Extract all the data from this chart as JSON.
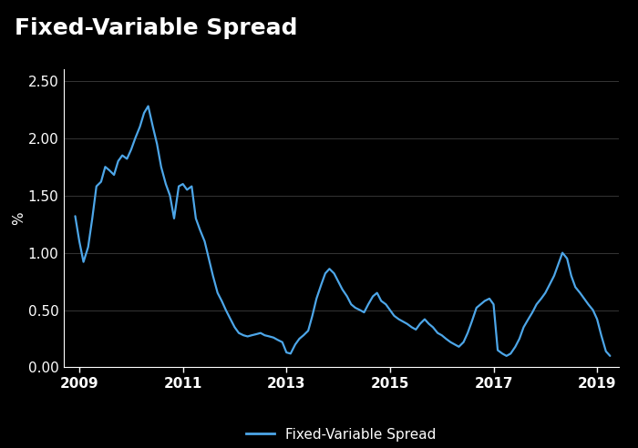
{
  "title": "Fixed-Variable Spread",
  "ylabel": "%",
  "legend_label": "Fixed-Variable Spread",
  "background_color": "#000000",
  "plot_bg_color": "#000000",
  "line_color": "#4da6e8",
  "line_width": 1.6,
  "grid_color": "#666666",
  "text_color": "#ffffff",
  "accent_color": "#e05a00",
  "separator_color": "#555555",
  "ylim": [
    0.0,
    2.6
  ],
  "yticks": [
    0.0,
    0.5,
    1.0,
    1.5,
    2.0,
    2.5
  ],
  "xtick_labels": [
    "2009",
    "2011",
    "2013",
    "2015",
    "2017",
    "2019"
  ],
  "xtick_positions": [
    2009,
    2011,
    2013,
    2015,
    2017,
    2019
  ],
  "xlim": [
    2008.7,
    2019.42
  ],
  "title_fontsize": 18,
  "axis_fontsize": 11,
  "legend_fontsize": 11,
  "dates": [
    2008.92,
    2009.0,
    2009.08,
    2009.17,
    2009.25,
    2009.33,
    2009.42,
    2009.5,
    2009.58,
    2009.67,
    2009.75,
    2009.83,
    2009.92,
    2010.0,
    2010.08,
    2010.17,
    2010.25,
    2010.33,
    2010.42,
    2010.5,
    2010.58,
    2010.67,
    2010.75,
    2010.83,
    2010.92,
    2011.0,
    2011.08,
    2011.17,
    2011.25,
    2011.33,
    2011.42,
    2011.5,
    2011.58,
    2011.67,
    2011.75,
    2011.83,
    2011.92,
    2012.0,
    2012.08,
    2012.17,
    2012.25,
    2012.33,
    2012.42,
    2012.5,
    2012.58,
    2012.67,
    2012.75,
    2012.83,
    2012.92,
    2013.0,
    2013.08,
    2013.17,
    2013.25,
    2013.33,
    2013.42,
    2013.5,
    2013.58,
    2013.67,
    2013.75,
    2013.83,
    2013.92,
    2014.0,
    2014.08,
    2014.17,
    2014.25,
    2014.33,
    2014.42,
    2014.5,
    2014.58,
    2014.67,
    2014.75,
    2014.83,
    2014.92,
    2015.0,
    2015.08,
    2015.17,
    2015.25,
    2015.33,
    2015.42,
    2015.5,
    2015.58,
    2015.67,
    2015.75,
    2015.83,
    2015.92,
    2016.0,
    2016.08,
    2016.17,
    2016.25,
    2016.33,
    2016.42,
    2016.5,
    2016.58,
    2016.67,
    2016.75,
    2016.83,
    2016.92,
    2017.0,
    2017.08,
    2017.17,
    2017.25,
    2017.33,
    2017.42,
    2017.5,
    2017.58,
    2017.67,
    2017.75,
    2017.83,
    2017.92,
    2018.0,
    2018.08,
    2018.17,
    2018.25,
    2018.33,
    2018.42,
    2018.5,
    2018.58,
    2018.67,
    2018.75,
    2018.83,
    2018.92,
    2019.0,
    2019.08,
    2019.17,
    2019.25
  ],
  "values": [
    1.32,
    1.1,
    0.92,
    1.05,
    1.3,
    1.58,
    1.62,
    1.75,
    1.72,
    1.68,
    1.8,
    1.85,
    1.82,
    1.9,
    2.0,
    2.1,
    2.22,
    2.28,
    2.1,
    1.95,
    1.75,
    1.6,
    1.5,
    1.3,
    1.58,
    1.6,
    1.55,
    1.58,
    1.3,
    1.2,
    1.1,
    0.95,
    0.8,
    0.65,
    0.58,
    0.5,
    0.42,
    0.35,
    0.3,
    0.28,
    0.27,
    0.28,
    0.29,
    0.3,
    0.28,
    0.27,
    0.26,
    0.24,
    0.22,
    0.13,
    0.12,
    0.2,
    0.25,
    0.28,
    0.32,
    0.45,
    0.6,
    0.72,
    0.82,
    0.86,
    0.82,
    0.75,
    0.68,
    0.62,
    0.55,
    0.52,
    0.5,
    0.48,
    0.55,
    0.62,
    0.65,
    0.58,
    0.55,
    0.5,
    0.45,
    0.42,
    0.4,
    0.38,
    0.35,
    0.33,
    0.38,
    0.42,
    0.38,
    0.35,
    0.3,
    0.28,
    0.25,
    0.22,
    0.2,
    0.18,
    0.22,
    0.3,
    0.4,
    0.52,
    0.55,
    0.58,
    0.6,
    0.55,
    0.15,
    0.12,
    0.1,
    0.12,
    0.18,
    0.25,
    0.35,
    0.42,
    0.48,
    0.55,
    0.6,
    0.65,
    0.72,
    0.8,
    0.9,
    1.0,
    0.95,
    0.8,
    0.7,
    0.65,
    0.6,
    0.55,
    0.5,
    0.42,
    0.28,
    0.14,
    0.1
  ]
}
